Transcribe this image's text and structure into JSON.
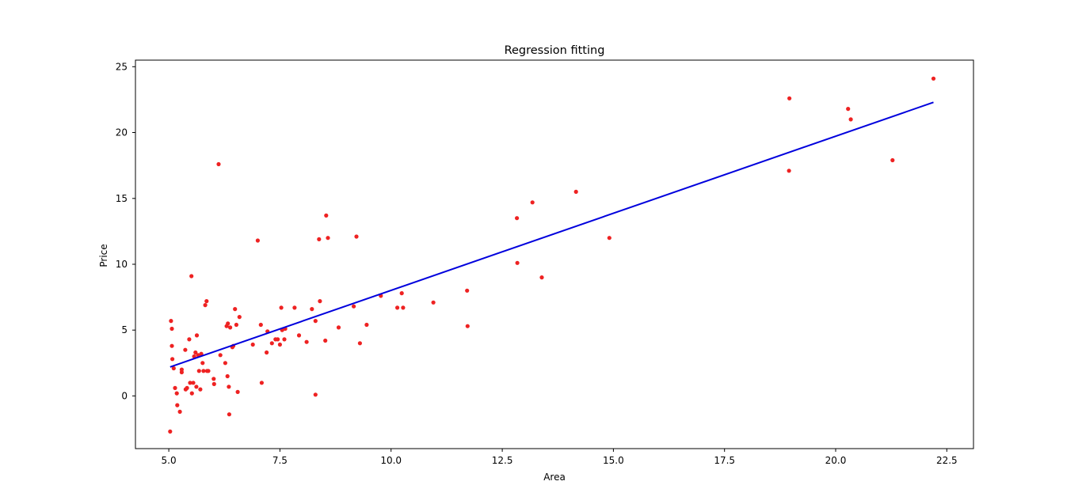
{
  "chart_data": {
    "type": "scatter",
    "title": "Regression fitting",
    "xlabel": "Area",
    "ylabel": "Price",
    "xlim": [
      4.25,
      23.1
    ],
    "ylim": [
      -4.0,
      25.5
    ],
    "xticks": [
      5.0,
      7.5,
      10.0,
      12.5,
      15.0,
      17.5,
      20.0,
      22.5
    ],
    "xtick_labels": [
      "5.0",
      "7.5",
      "10.0",
      "12.5",
      "15.0",
      "17.5",
      "20.0",
      "22.5"
    ],
    "yticks": [
      0,
      5,
      10,
      15,
      20,
      25
    ],
    "ytick_labels": [
      "0",
      "5",
      "10",
      "15",
      "20",
      "25"
    ],
    "grid": false,
    "colors": {
      "points": "#ee2222",
      "fit_line": "#0000dd",
      "axes": "#000000"
    },
    "series": [
      {
        "kind": "points",
        "x": [
          5.03,
          5.05,
          5.07,
          5.07,
          5.08,
          5.11,
          5.14,
          5.18,
          5.19,
          5.25,
          5.29,
          5.29,
          5.37,
          5.38,
          5.41,
          5.46,
          5.48,
          5.51,
          5.52,
          5.55,
          5.57,
          5.6,
          5.62,
          5.63,
          5.66,
          5.68,
          5.71,
          5.73,
          5.76,
          5.78,
          5.82,
          5.85,
          5.86,
          5.89,
          6.01,
          6.02,
          6.12,
          6.16,
          6.27,
          6.3,
          6.32,
          6.33,
          6.35,
          6.36,
          6.38,
          6.43,
          6.45,
          6.49,
          6.52,
          6.55,
          6.59,
          6.89,
          7.0,
          7.07,
          7.09,
          7.2,
          7.22,
          7.32,
          7.4,
          7.45,
          7.5,
          7.53,
          7.55,
          7.6,
          7.62,
          7.83,
          7.93,
          8.1,
          8.22,
          8.3,
          8.3,
          8.38,
          8.4,
          8.52,
          8.54,
          8.58,
          8.82,
          9.16,
          9.22,
          9.3,
          9.45,
          9.77,
          10.14,
          10.24,
          10.27,
          10.95,
          11.71,
          11.72,
          12.83,
          12.84,
          13.18,
          13.39,
          14.16,
          14.91,
          18.95,
          18.96,
          20.28,
          20.34,
          21.28,
          22.2
        ],
        "y": [
          -2.7,
          5.7,
          5.1,
          3.8,
          2.8,
          2.1,
          0.6,
          0.2,
          -0.7,
          -1.2,
          1.8,
          2.0,
          3.5,
          0.5,
          0.6,
          4.3,
          1.0,
          9.1,
          0.2,
          1.0,
          3.0,
          3.3,
          0.7,
          4.6,
          3.1,
          1.9,
          0.5,
          3.2,
          2.5,
          1.9,
          6.9,
          7.2,
          1.9,
          1.9,
          1.3,
          0.9,
          17.6,
          3.1,
          2.5,
          5.3,
          1.5,
          5.5,
          0.7,
          -1.4,
          5.2,
          3.7,
          3.8,
          6.6,
          5.4,
          0.3,
          6.0,
          3.9,
          11.8,
          5.4,
          1.0,
          3.3,
          4.9,
          4.0,
          4.3,
          4.3,
          3.9,
          6.7,
          5.0,
          4.3,
          5.1,
          6.7,
          4.6,
          4.1,
          6.6,
          5.7,
          0.1,
          11.9,
          7.2,
          4.2,
          13.7,
          12.0,
          5.2,
          6.8,
          12.1,
          4.0,
          5.4,
          7.6,
          6.7,
          7.8,
          6.7,
          7.1,
          8.0,
          5.3,
          13.5,
          10.1,
          14.7,
          9.0,
          15.5,
          12.0,
          17.1,
          22.6,
          21.8,
          21.0,
          17.9,
          24.1
        ]
      },
      {
        "kind": "line",
        "x": [
          5.03,
          22.2
        ],
        "y": [
          2.2,
          22.3
        ]
      }
    ]
  }
}
